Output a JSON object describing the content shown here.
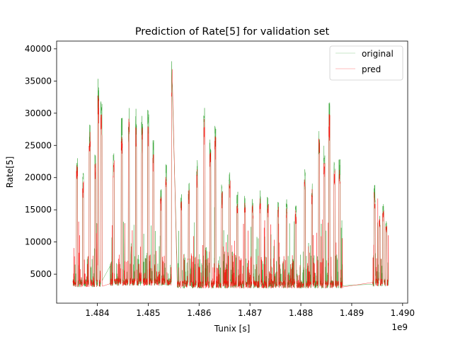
{
  "chart_data": {
    "type": "line",
    "title": "Prediction of Rate[5] for validation set",
    "xlabel": "Tunix [s]",
    "ylabel": "Rate[5]",
    "x_offset_label": "1e9",
    "xlim": [
      1.4832,
      1.4901
    ],
    "ylim": [
      500,
      41200
    ],
    "x_ticks": [
      1.484,
      1.485,
      1.486,
      1.487,
      1.488,
      1.489,
      1.49
    ],
    "x_tick_labels": [
      "1.484",
      "1.485",
      "1.486",
      "1.487",
      "1.488",
      "1.489",
      "1.490"
    ],
    "y_ticks": [
      5000,
      10000,
      15000,
      20000,
      25000,
      30000,
      35000,
      40000
    ],
    "y_tick_labels": [
      "5000",
      "10000",
      "15000",
      "20000",
      "25000",
      "30000",
      "35000",
      "40000"
    ],
    "grid": false,
    "legend": "top-right",
    "segments": [
      {
        "x": [
          1.48352,
          1.4841
        ],
        "baseline": 3000,
        "peaks": [
          [
            1.4836,
            23500
          ],
          [
            1.48372,
            21000
          ],
          [
            1.48385,
            29000
          ],
          [
            1.48396,
            24000
          ],
          [
            1.48402,
            35400
          ],
          [
            1.48408,
            32200
          ]
        ]
      },
      {
        "x": [
          1.48425,
          1.48547
        ],
        "baseline": 3200,
        "peaks": [
          [
            1.48432,
            24500
          ],
          [
            1.48448,
            29600
          ],
          [
            1.48462,
            31000
          ],
          [
            1.48476,
            30800
          ],
          [
            1.48488,
            29600
          ],
          [
            1.485,
            31000
          ],
          [
            1.4851,
            26000
          ],
          [
            1.48525,
            18500
          ],
          [
            1.48535,
            22500
          ],
          [
            1.48547,
            39700
          ]
        ]
      },
      {
        "x": [
          1.48557,
          1.48882
        ],
        "baseline": 2800,
        "peaks": [
          [
            1.48565,
            17500
          ],
          [
            1.4858,
            19500
          ],
          [
            1.48596,
            23000
          ],
          [
            1.4861,
            31300
          ],
          [
            1.48622,
            26000
          ],
          [
            1.48632,
            28400
          ],
          [
            1.48645,
            19000
          ],
          [
            1.4866,
            21000
          ],
          [
            1.48675,
            17800
          ],
          [
            1.4869,
            17200
          ],
          [
            1.48705,
            16800
          ],
          [
            1.4872,
            18000
          ],
          [
            1.48735,
            17000
          ],
          [
            1.48755,
            16500
          ],
          [
            1.48772,
            16800
          ],
          [
            1.4879,
            16000
          ],
          [
            1.48808,
            21300
          ],
          [
            1.48822,
            19500
          ],
          [
            1.48836,
            27800
          ],
          [
            1.48846,
            25000
          ],
          [
            1.48856,
            32000
          ],
          [
            1.48866,
            22500
          ],
          [
            1.48876,
            23000
          ]
        ]
      },
      {
        "x": [
          1.48941,
          1.48972
        ],
        "baseline": 3100,
        "peaks": [
          [
            1.48945,
            19000
          ],
          [
            1.48955,
            14500
          ],
          [
            1.48962,
            16000
          ],
          [
            1.48968,
            13500
          ]
        ]
      }
    ],
    "series": [
      {
        "name": "original",
        "color": "#2ca02c"
      },
      {
        "name": "pred",
        "color": "#ff0000"
      }
    ]
  }
}
